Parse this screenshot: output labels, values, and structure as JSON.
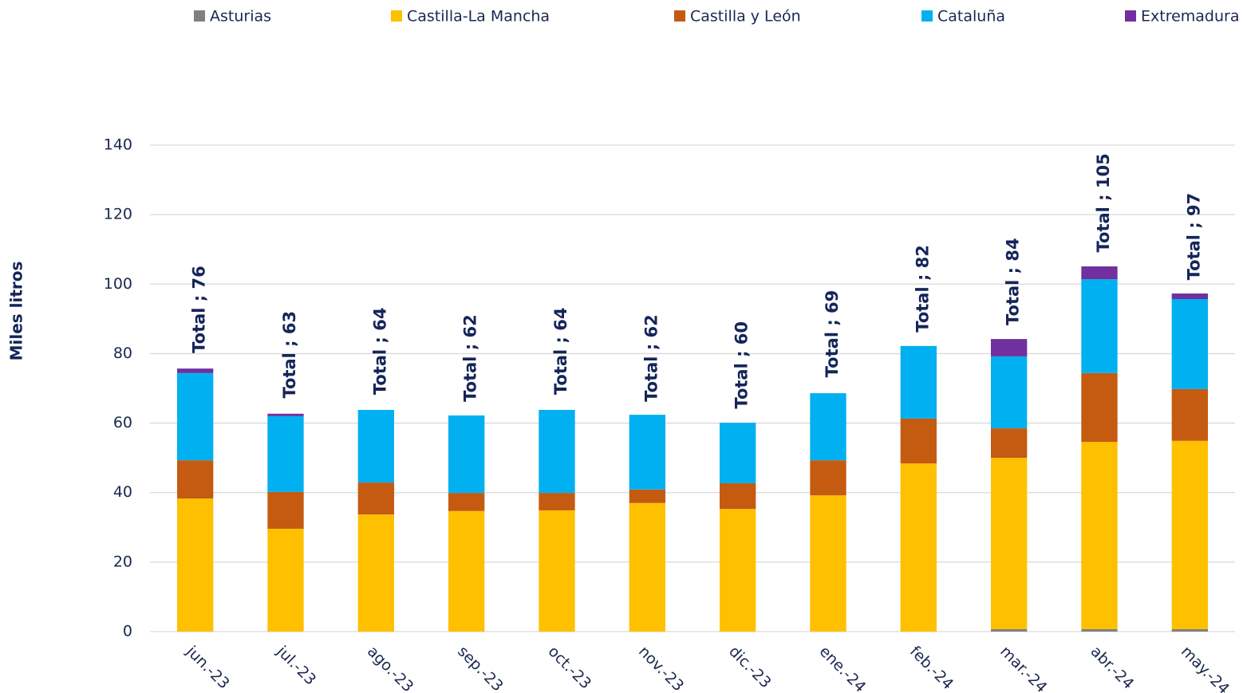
{
  "chart_data": {
    "type": "stacked_bar",
    "y_label": "Miles litros",
    "categories": [
      "jun.-23",
      "jul.-23",
      "ago.-23",
      "sep.-23",
      "oct.-23",
      "nov.-23",
      "dic.-23",
      "ene.-24",
      "feb.-24",
      "mar.-24",
      "abr.-24",
      "may.-24"
    ],
    "series": [
      {
        "name": "Asturias",
        "color": "#808080",
        "values": [
          0,
          0,
          0,
          0,
          0,
          0,
          0,
          0,
          0,
          0.7,
          0.7,
          0.7
        ]
      },
      {
        "name": "Castilla-La Mancha",
        "color": "#ffc000",
        "values": [
          38.3,
          29.6,
          33.7,
          34.7,
          34.9,
          37.0,
          35.3,
          39.2,
          48.4,
          49.3,
          53.9,
          54.2
        ]
      },
      {
        "name": "Castilla y León",
        "color": "#c55a11",
        "values": [
          11.0,
          10.6,
          9.2,
          5.2,
          5.0,
          3.9,
          7.4,
          10.1,
          12.9,
          8.5,
          19.8,
          14.9
        ]
      },
      {
        "name": "Cataluña",
        "color": "#00b0f0",
        "values": [
          25.1,
          21.8,
          20.9,
          22.3,
          23.9,
          21.5,
          17.4,
          19.3,
          20.9,
          20.7,
          27.0,
          25.9
        ]
      },
      {
        "name": "Extremadura",
        "color": "#7030a0",
        "values": [
          1.3,
          0.7,
          0,
          0,
          0,
          0,
          0,
          0,
          0,
          5.0,
          3.7,
          1.6
        ]
      }
    ],
    "totals": [
      76,
      63,
      64,
      62,
      64,
      62,
      60,
      69,
      82,
      84,
      105,
      97
    ],
    "total_labels": [
      "Total ; 76",
      "Total ; 63",
      "Total ; 64",
      "Total ; 62",
      "Total ; 64",
      "Total ; 62",
      "Total ; 60",
      "Total ; 69",
      "Total ; 82",
      "Total ; 84",
      "Total ; 105",
      "Total ; 97"
    ],
    "ylim": [
      0,
      140
    ],
    "yticks": [
      0,
      20,
      40,
      60,
      80,
      100,
      120,
      140
    ],
    "grid": true,
    "legend": "top"
  }
}
